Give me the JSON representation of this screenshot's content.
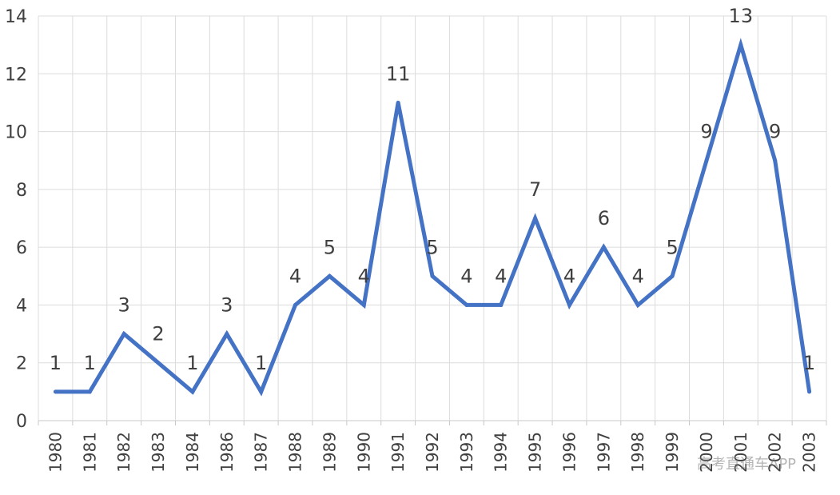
{
  "chart_data": {
    "type": "line",
    "categories": [
      "1980",
      "1981",
      "1982",
      "1983",
      "1984",
      "1986",
      "1987",
      "1988",
      "1989",
      "1990",
      "1991",
      "1992",
      "1993",
      "1994",
      "1995",
      "1996",
      "1997",
      "1998",
      "1999",
      "2000",
      "2001",
      "2002",
      "2003"
    ],
    "series": [
      {
        "values": [
          1,
          1,
          3,
          2,
          1,
          3,
          1,
          4,
          5,
          4,
          11,
          5,
          4,
          4,
          7,
          4,
          6,
          4,
          5,
          9,
          13,
          9,
          1
        ]
      }
    ],
    "ylim": [
      0,
      14
    ],
    "yticks": [
      0,
      2,
      4,
      6,
      8,
      10,
      12,
      14
    ],
    "grid": true,
    "data_labels": true,
    "line_color": "#4472C4",
    "title": "",
    "xlabel": "",
    "ylabel": ""
  },
  "watermark": {
    "text": "高考直通车APP"
  }
}
